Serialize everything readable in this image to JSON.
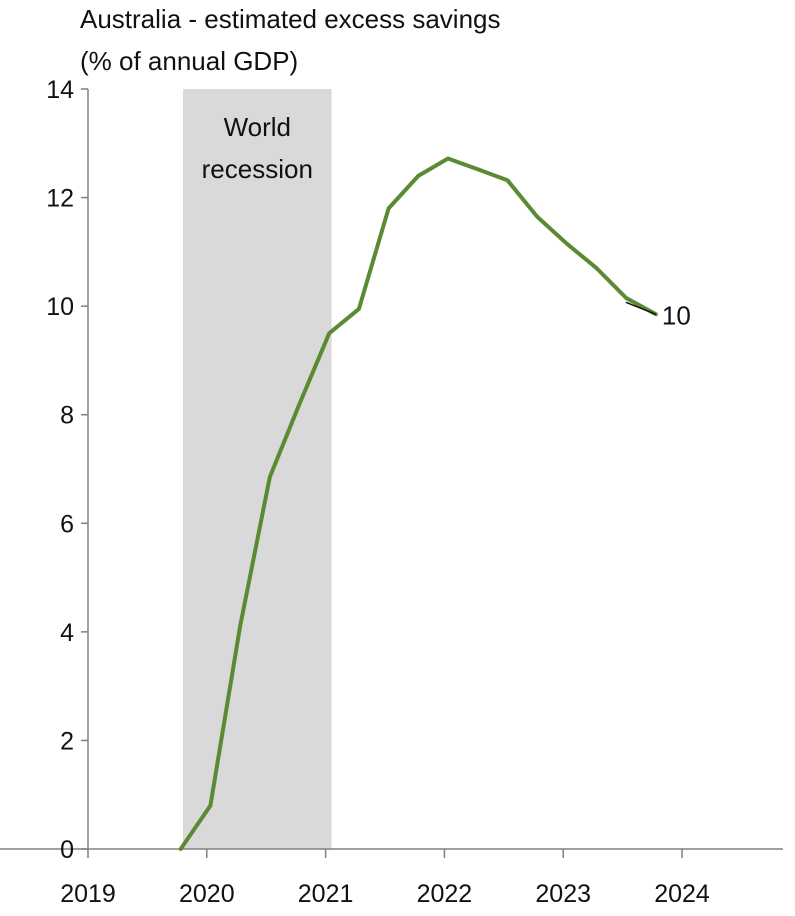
{
  "chart_data": {
    "type": "line",
    "title": "Australia - estimated excess savings",
    "subtitle": "(% of annual GDP)",
    "xlabel": "",
    "ylabel": "",
    "xlim": [
      2019,
      2024.85
    ],
    "ylim": [
      0,
      14
    ],
    "y_ticks": [
      "0",
      "2",
      "4",
      "6",
      "8",
      "10",
      "12",
      "14"
    ],
    "x_ticks": [
      "2019",
      "2020",
      "2021",
      "2022",
      "2023",
      "2024"
    ],
    "grid": false,
    "legend": "none",
    "shaded_region": {
      "label_lines": [
        "World",
        "recession"
      ],
      "x_start": 2019.8,
      "x_end": 2021.05,
      "color": "#d9d9d9"
    },
    "end_label": "10",
    "series": [
      {
        "color": "#5a8a32",
        "x": [
          2019.78,
          2020.03,
          2020.28,
          2020.53,
          2020.78,
          2021.03,
          2021.28,
          2021.53,
          2021.78,
          2022.03,
          2022.28,
          2022.53,
          2022.78,
          2023.03,
          2023.28,
          2023.53,
          2023.78
        ],
        "y": [
          0.0,
          0.8,
          4.1,
          6.85,
          8.2,
          9.5,
          9.95,
          11.8,
          12.4,
          12.72,
          12.52,
          12.32,
          11.65,
          11.15,
          10.7,
          10.15,
          9.85
        ]
      }
    ]
  }
}
